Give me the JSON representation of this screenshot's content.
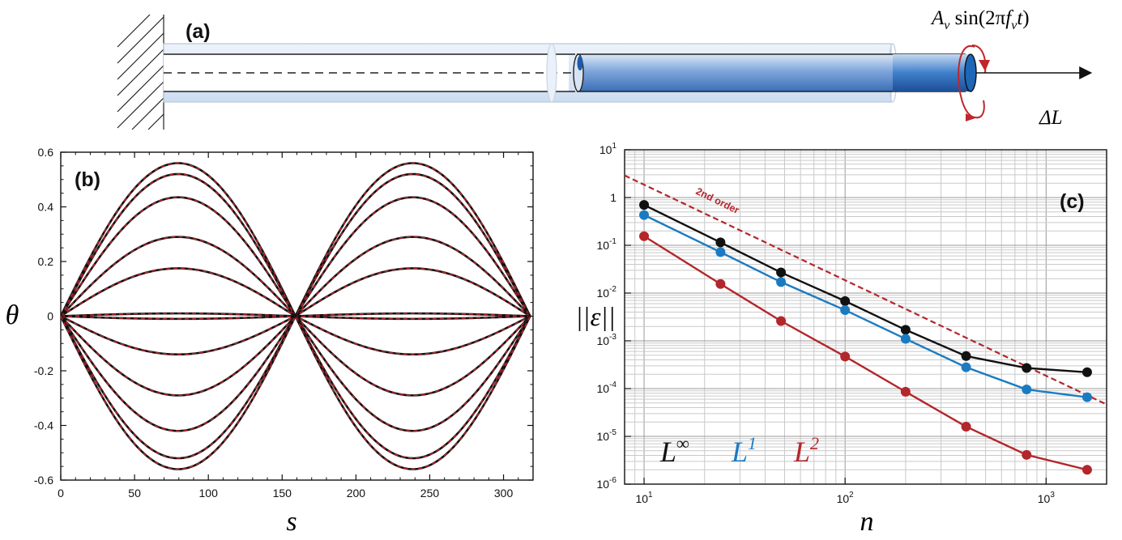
{
  "colors": {
    "black": "#111111",
    "blue": "#1b7bc2",
    "red": "#b3262b",
    "tube": "#3b78c4"
  },
  "panel_a": {
    "label": "(a)",
    "forcing_lhs": "A",
    "forcing_sub": "v",
    "forcing_fn": " sin(2π",
    "forcing_f": "f",
    "forcing_fsub": "v",
    "forcing_t": "t",
    "forcing_close": ")",
    "extension_label": "ΔL"
  },
  "chart_data": [
    {
      "type": "line",
      "panel": "(b)",
      "xlabel": "s",
      "ylabel": "θ",
      "xlim": [
        0,
        320
      ],
      "ylim": [
        -0.6,
        0.6
      ],
      "xticks": [
        "0",
        "50",
        "100",
        "150",
        "200",
        "250",
        "300"
      ],
      "xtick_values": [
        0,
        50,
        100,
        150,
        200,
        250,
        300
      ],
      "yticks": [
        "0.6",
        "0.4",
        "0.2",
        "0",
        "-0.2",
        "-0.4",
        "-0.6"
      ],
      "ytick_values": [
        0.6,
        0.4,
        0.2,
        0,
        -0.2,
        -0.4,
        -0.6
      ],
      "period": 318,
      "amplitudes": [
        0.56,
        0.52,
        0.435,
        0.29,
        0.175,
        0.01,
        -0.01,
        -0.14,
        -0.29,
        -0.42,
        -0.52,
        -0.56
      ],
      "curve_colors": {
        "line": "#111111",
        "dash": "#b3262b"
      }
    },
    {
      "type": "line",
      "panel": "(c)",
      "xscale": "log",
      "yscale": "log",
      "xlabel": "n",
      "ylabel": "||ε||",
      "xlim": [
        8,
        2000
      ],
      "ylim": [
        1e-06,
        10
      ],
      "xticks": [
        {
          "base": "10",
          "exp": "1",
          "value": 10
        },
        {
          "base": "10",
          "exp": "2",
          "value": 100
        },
        {
          "base": "10",
          "exp": "3",
          "value": 1000
        }
      ],
      "yticks": [
        {
          "base": "10",
          "exp": "1",
          "value": 10
        },
        {
          "base": "1",
          "exp": "",
          "value": 1
        },
        {
          "base": "10",
          "exp": "-1",
          "value": 0.1
        },
        {
          "base": "10",
          "exp": "-2",
          "value": 0.01
        },
        {
          "base": "10",
          "exp": "-3",
          "value": 0.001
        },
        {
          "base": "10",
          "exp": "-4",
          "value": 0.0001
        },
        {
          "base": "10",
          "exp": "-5",
          "value": 1e-05
        },
        {
          "base": "10",
          "exp": "-6",
          "value": 1e-06
        }
      ],
      "grid": true,
      "x": [
        10,
        24,
        48,
        100,
        200,
        400,
        800,
        1600
      ],
      "series": [
        {
          "name": "L",
          "sup": "∞",
          "color": "#111111",
          "values": [
            0.7,
            0.115,
            0.027,
            0.0068,
            0.0017,
            0.00048,
            0.00027,
            0.00022
          ]
        },
        {
          "name": "L",
          "sup": "1",
          "color": "#1b7bc2",
          "values": [
            0.43,
            0.072,
            0.017,
            0.0044,
            0.0011,
            0.00028,
            9.6e-05,
            6.6e-05
          ]
        },
        {
          "name": "L",
          "sup": "2",
          "color": "#b3262b",
          "values": [
            0.155,
            0.0155,
            0.0026,
            0.00047,
            8.6e-05,
            1.6e-05,
            4.1e-06,
            2e-06
          ]
        }
      ],
      "reference": {
        "label": "2nd order",
        "x": [
          8,
          2000
        ],
        "values": [
          2.9,
          4.65e-05
        ],
        "color": "#b3262b"
      }
    }
  ]
}
